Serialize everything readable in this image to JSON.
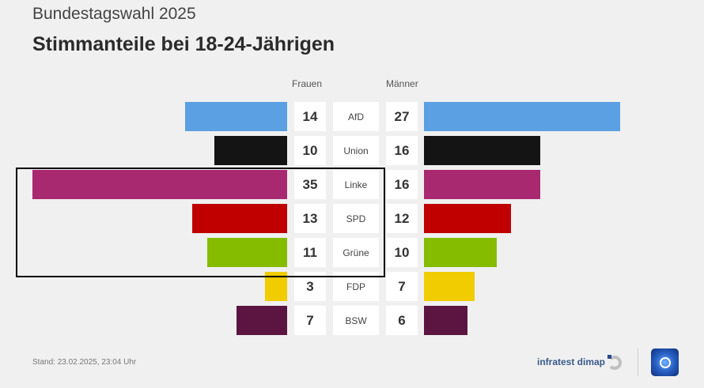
{
  "header": {
    "suptitle": "Bundestagswahl 2025",
    "title": "Stimmanteile bei 18-24-Jährigen"
  },
  "chart_data": {
    "type": "bar",
    "orientation": "horizontal-butterfly",
    "title": "Stimmanteile bei 18-24-Jährigen",
    "categories": [
      "AfD",
      "Union",
      "Linke",
      "SPD",
      "Grüne",
      "FDP",
      "BSW"
    ],
    "series": [
      {
        "name": "Frauen",
        "values": [
          14,
          10,
          35,
          13,
          11,
          3,
          7
        ]
      },
      {
        "name": "Männer",
        "values": [
          27,
          16,
          16,
          12,
          10,
          7,
          6
        ]
      }
    ],
    "colors": [
      "#5aa0e2",
      "#141414",
      "#a8296f",
      "#c00000",
      "#86bc00",
      "#f0cc00",
      "#5c1540"
    ],
    "unit": "%",
    "highlighted_categories": [
      "Linke",
      "SPD",
      "Grüne"
    ]
  },
  "footer": {
    "stand": "Stand:  23.02.2025, 23:04 Uhr",
    "source": "infratest dimap"
  }
}
